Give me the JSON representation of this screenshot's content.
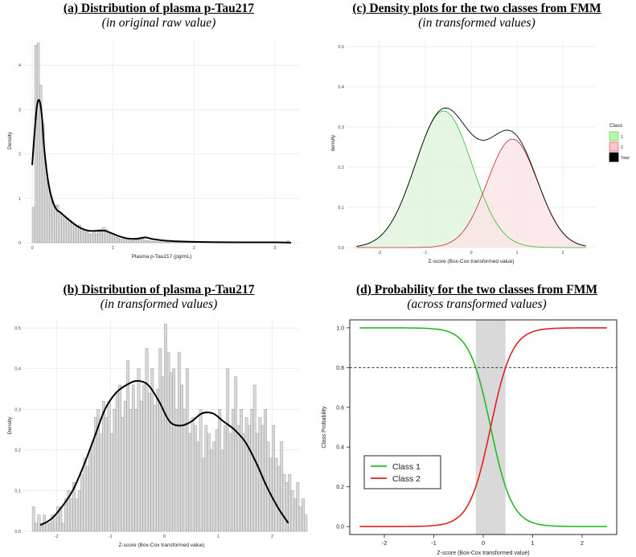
{
  "chart_data": [
    {
      "id": "a",
      "type": "histogram",
      "title": "(a) Distribution of plasma p-Tau217",
      "subtitle": "(in original raw value)",
      "xlabel": "Plasma p-Tau217 (pg/mL)",
      "ylabel": "Density",
      "xlim": [
        -0.1,
        3.3
      ],
      "ylim": [
        0,
        4.6
      ],
      "xticks": [
        0,
        1,
        2,
        3
      ],
      "yticks": [
        0,
        1,
        2,
        3,
        4
      ],
      "bin_width": 0.03,
      "bin_start": 0.0,
      "bars": [
        0.8,
        4.45,
        4.5,
        3.55,
        2.7,
        1.8,
        1.35,
        1.05,
        0.95,
        0.85,
        0.85,
        0.65,
        0.6,
        0.6,
        0.55,
        0.5,
        0.45,
        0.4,
        0.35,
        0.4,
        0.3,
        0.3,
        0.25,
        0.2,
        0.2,
        0.25,
        0.2,
        0.3,
        0.3,
        0.35,
        0.3,
        0.25,
        0.2,
        0.15,
        0.12,
        0.1,
        0.08,
        0.08,
        0.07,
        0.06,
        0.05,
        0.05,
        0.07,
        0.06,
        0.12,
        0.1,
        0.06,
        0.05,
        0.04,
        0.03,
        0.03,
        0.02,
        0.02,
        0.02,
        0.01,
        0.02,
        0.01,
        0.01,
        0.02,
        0.01,
        0.01,
        0.01,
        0.01,
        0.02,
        0.01,
        0.01,
        0.01,
        0.01,
        0.01,
        0.01,
        0.01,
        0.01,
        0.01,
        0.01,
        0.01,
        0.01,
        0.01,
        0.01,
        0.01,
        0.01,
        0.01,
        0.01,
        0.01,
        0.01,
        0.01,
        0.01,
        0.01,
        0.01,
        0.01,
        0.01,
        0.01,
        0.01,
        0.01,
        0.01,
        0.01,
        0.01,
        0.01,
        0.01,
        0.01,
        0.01,
        0.01,
        0.01,
        0.01,
        0.01,
        0.01,
        0.05
      ],
      "density_curve": {
        "x": [
          0.0,
          0.03,
          0.06,
          0.09,
          0.12,
          0.15,
          0.2,
          0.25,
          0.3,
          0.35,
          0.4,
          0.5,
          0.6,
          0.7,
          0.8,
          0.9,
          1.0,
          1.1,
          1.2,
          1.3,
          1.4,
          1.5,
          1.7,
          2.0,
          2.5,
          3.0,
          3.2
        ],
        "y": [
          1.75,
          2.5,
          3.1,
          3.2,
          2.85,
          2.1,
          1.35,
          0.95,
          0.75,
          0.68,
          0.6,
          0.45,
          0.33,
          0.27,
          0.27,
          0.27,
          0.2,
          0.13,
          0.09,
          0.09,
          0.12,
          0.08,
          0.04,
          0.02,
          0.01,
          0.01,
          0.0
        ]
      }
    },
    {
      "id": "c",
      "type": "density",
      "title": "(c) Density plots for the two classes from FMM",
      "subtitle": "(in transformed values)",
      "xlabel": "Z-score (Box-Cox transformed value)",
      "ylabel": "density",
      "xlim": [
        -2.7,
        2.7
      ],
      "ylim": [
        0,
        0.52
      ],
      "xticks": [
        -2,
        -1,
        0,
        1,
        2
      ],
      "yticks": [
        0.0,
        0.1,
        0.2,
        0.3,
        0.4,
        0.5
      ],
      "ytick_labels": [
        "0.0",
        "0.1",
        "0.2",
        "0.3",
        "0.4",
        "0.5"
      ],
      "legend": {
        "title": "Class",
        "entries": [
          "1",
          "2",
          "Total"
        ],
        "colors": [
          "#66dd55",
          "#ee6677",
          "#000000"
        ]
      },
      "series": [
        {
          "name": "1",
          "color": "#33bb33",
          "fill": "#dff5dc",
          "mean": -0.6,
          "sd": 0.62,
          "peak": 0.34
        },
        {
          "name": "2",
          "color": "#cc2222",
          "fill": "#fbe3e6",
          "mean": 0.9,
          "sd": 0.55,
          "peak": 0.27
        },
        {
          "name": "Total",
          "color": "#000000"
        }
      ],
      "x_range": [
        -2.5,
        2.5
      ]
    },
    {
      "id": "b",
      "type": "histogram",
      "title": "(b) Distribution of plasma p-Tau217",
      "subtitle": "(in transformed values)",
      "xlabel": "Z-score (Box-Cox transformed value)",
      "ylabel": "Density",
      "xlim": [
        -2.6,
        2.5
      ],
      "ylim": [
        0,
        0.52
      ],
      "xticks": [
        -2,
        -1,
        0,
        1,
        2
      ],
      "yticks": [
        0.0,
        0.1,
        0.2,
        0.3,
        0.4,
        0.5
      ],
      "ytick_labels": [
        "0.0",
        "0.1",
        "0.2",
        "0.3",
        "0.4",
        "0.5"
      ],
      "bin_width": 0.05,
      "bin_start": -2.45,
      "bars": [
        0.06,
        0.02,
        0.04,
        0.02,
        0.04,
        0.02,
        0.02,
        0.04,
        0.04,
        0.06,
        0.06,
        0.02,
        0.08,
        0.1,
        0.08,
        0.12,
        0.08,
        0.1,
        0.14,
        0.18,
        0.16,
        0.2,
        0.22,
        0.28,
        0.3,
        0.24,
        0.32,
        0.28,
        0.32,
        0.24,
        0.3,
        0.34,
        0.36,
        0.28,
        0.32,
        0.42,
        0.3,
        0.36,
        0.3,
        0.4,
        0.32,
        0.36,
        0.45,
        0.34,
        0.4,
        0.31,
        0.35,
        0.45,
        0.38,
        0.51,
        0.44,
        0.39,
        0.4,
        0.3,
        0.44,
        0.36,
        0.3,
        0.4,
        0.24,
        0.28,
        0.26,
        0.22,
        0.3,
        0.18,
        0.26,
        0.24,
        0.2,
        0.22,
        0.25,
        0.3,
        0.2,
        0.26,
        0.4,
        0.24,
        0.3,
        0.38,
        0.26,
        0.3,
        0.24,
        0.28,
        0.26,
        0.3,
        0.36,
        0.24,
        0.28,
        0.26,
        0.3,
        0.22,
        0.18,
        0.26,
        0.18,
        0.16,
        0.22,
        0.14,
        0.12,
        0.14,
        0.1,
        0.08,
        0.12,
        0.06,
        0.08,
        0.04
      ],
      "density_curve": {
        "x": [
          -2.3,
          -2.1,
          -1.9,
          -1.7,
          -1.5,
          -1.3,
          -1.1,
          -0.9,
          -0.7,
          -0.5,
          -0.3,
          -0.1,
          0.1,
          0.3,
          0.5,
          0.7,
          0.9,
          1.1,
          1.3,
          1.5,
          1.7,
          1.9,
          2.1,
          2.3
        ],
        "y": [
          0.015,
          0.03,
          0.06,
          0.1,
          0.16,
          0.23,
          0.3,
          0.34,
          0.36,
          0.37,
          0.36,
          0.32,
          0.27,
          0.26,
          0.27,
          0.29,
          0.29,
          0.27,
          0.25,
          0.22,
          0.17,
          0.11,
          0.06,
          0.02
        ]
      }
    },
    {
      "id": "d",
      "type": "line",
      "title": "(d) Probability for the two classes from FMM",
      "subtitle": "(across transformed values)",
      "xlabel": "Z-score (Box-Cox transformed value)",
      "ylabel": "Class Probability",
      "xlim": [
        -2.7,
        2.7
      ],
      "ylim": [
        -0.04,
        1.04
      ],
      "xticks": [
        -2,
        -1,
        0,
        1,
        2
      ],
      "yticks": [
        0.0,
        0.2,
        0.4,
        0.6,
        0.8,
        1.0
      ],
      "ytick_labels": [
        "0.0",
        "0.2",
        "0.4",
        "0.6",
        "0.8",
        "1.0"
      ],
      "reference_line": {
        "y": 0.8,
        "style": "dashed"
      },
      "shaded_band": {
        "x": [
          -0.15,
          0.45
        ]
      },
      "crossover": 0.15,
      "slope": 4.6,
      "x_range": [
        -2.5,
        2.5
      ],
      "series": [
        {
          "name": "Class 1",
          "color": "#22bb22"
        },
        {
          "name": "Class 2",
          "color": "#dd2222"
        }
      ]
    }
  ]
}
